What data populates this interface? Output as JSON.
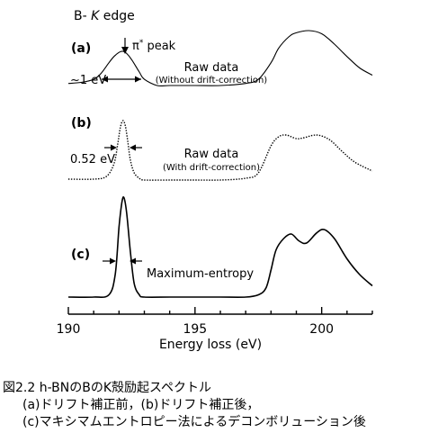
{
  "chart_data": {
    "type": "line",
    "title": "B- K edge",
    "title_prefix": "B- ",
    "title_italic": "K",
    "title_suffix": " edge",
    "xlabel": "Energy loss (eV)",
    "ylabel": "",
    "xlim": [
      190,
      202
    ],
    "x_ticks": [
      190,
      195,
      200
    ],
    "x_tick_labels": [
      "190",
      "195",
      "200"
    ],
    "series": [
      {
        "panel": "(a)",
        "label": "Raw data",
        "sublabel": "(Without drift-correction)",
        "annotation": "~1 eV",
        "peak_label_prefix": "π",
        "peak_label_sup": "*",
        "peak_label_suffix": " peak",
        "x": [
          190.0,
          190.5,
          191.0,
          191.3,
          191.6,
          191.8,
          192.0,
          192.15,
          192.3,
          192.5,
          192.8,
          193.0,
          193.5,
          194.0,
          195.0,
          196.0,
          197.0,
          197.5,
          198.0,
          198.3,
          198.7,
          199.0,
          199.5,
          200.0,
          200.5,
          201.0,
          201.5,
          202.0
        ],
        "values": [
          0.02,
          0.03,
          0.06,
          0.12,
          0.22,
          0.28,
          0.32,
          0.33,
          0.31,
          0.25,
          0.13,
          0.06,
          0.0,
          0.0,
          0.0,
          0.0,
          0.02,
          0.06,
          0.22,
          0.36,
          0.47,
          0.51,
          0.53,
          0.5,
          0.4,
          0.28,
          0.17,
          0.1
        ]
      },
      {
        "panel": "(b)",
        "label": "Raw data",
        "sublabel": "(With drift-correction)",
        "annotation": "0.52 eV",
        "x": [
          190.0,
          191.0,
          191.5,
          191.8,
          191.95,
          192.05,
          192.15,
          192.25,
          192.35,
          192.45,
          192.6,
          192.8,
          193.0,
          194.0,
          195.0,
          196.0,
          197.0,
          197.5,
          198.0,
          198.3,
          198.6,
          199.0,
          199.3,
          199.8,
          200.3,
          200.8,
          201.3,
          202.0
        ],
        "values": [
          0.01,
          0.01,
          0.04,
          0.18,
          0.4,
          0.58,
          0.66,
          0.6,
          0.42,
          0.22,
          0.08,
          0.02,
          0.0,
          0.0,
          0.0,
          0.0,
          0.02,
          0.08,
          0.38,
          0.48,
          0.5,
          0.46,
          0.47,
          0.5,
          0.45,
          0.32,
          0.2,
          0.1
        ]
      },
      {
        "panel": "(c)",
        "label": "Maximum-entropy",
        "x": [
          190.0,
          191.0,
          191.6,
          191.85,
          192.0,
          192.12,
          192.2,
          192.3,
          192.45,
          192.6,
          192.8,
          193.0,
          194.0,
          195.0,
          196.0,
          197.0,
          197.5,
          197.8,
          198.0,
          198.2,
          198.5,
          198.8,
          199.1,
          199.4,
          199.8,
          200.1,
          200.5,
          201.0,
          201.5,
          202.0
        ],
        "values": [
          0.0,
          0.0,
          0.02,
          0.2,
          0.62,
          0.85,
          0.88,
          0.75,
          0.4,
          0.12,
          0.02,
          0.0,
          0.0,
          0.0,
          0.0,
          0.0,
          0.02,
          0.08,
          0.24,
          0.42,
          0.52,
          0.56,
          0.5,
          0.48,
          0.57,
          0.6,
          0.52,
          0.34,
          0.2,
          0.1
        ]
      }
    ]
  },
  "caption": {
    "line1": "図2.2  h-BNのBのK殻励起スペクトル",
    "line2": "(a)ドリフト補正前，(b)ドリフト補正後，",
    "line3": "(c)マキシマムエントロピー法によるデコンボリューション後"
  }
}
